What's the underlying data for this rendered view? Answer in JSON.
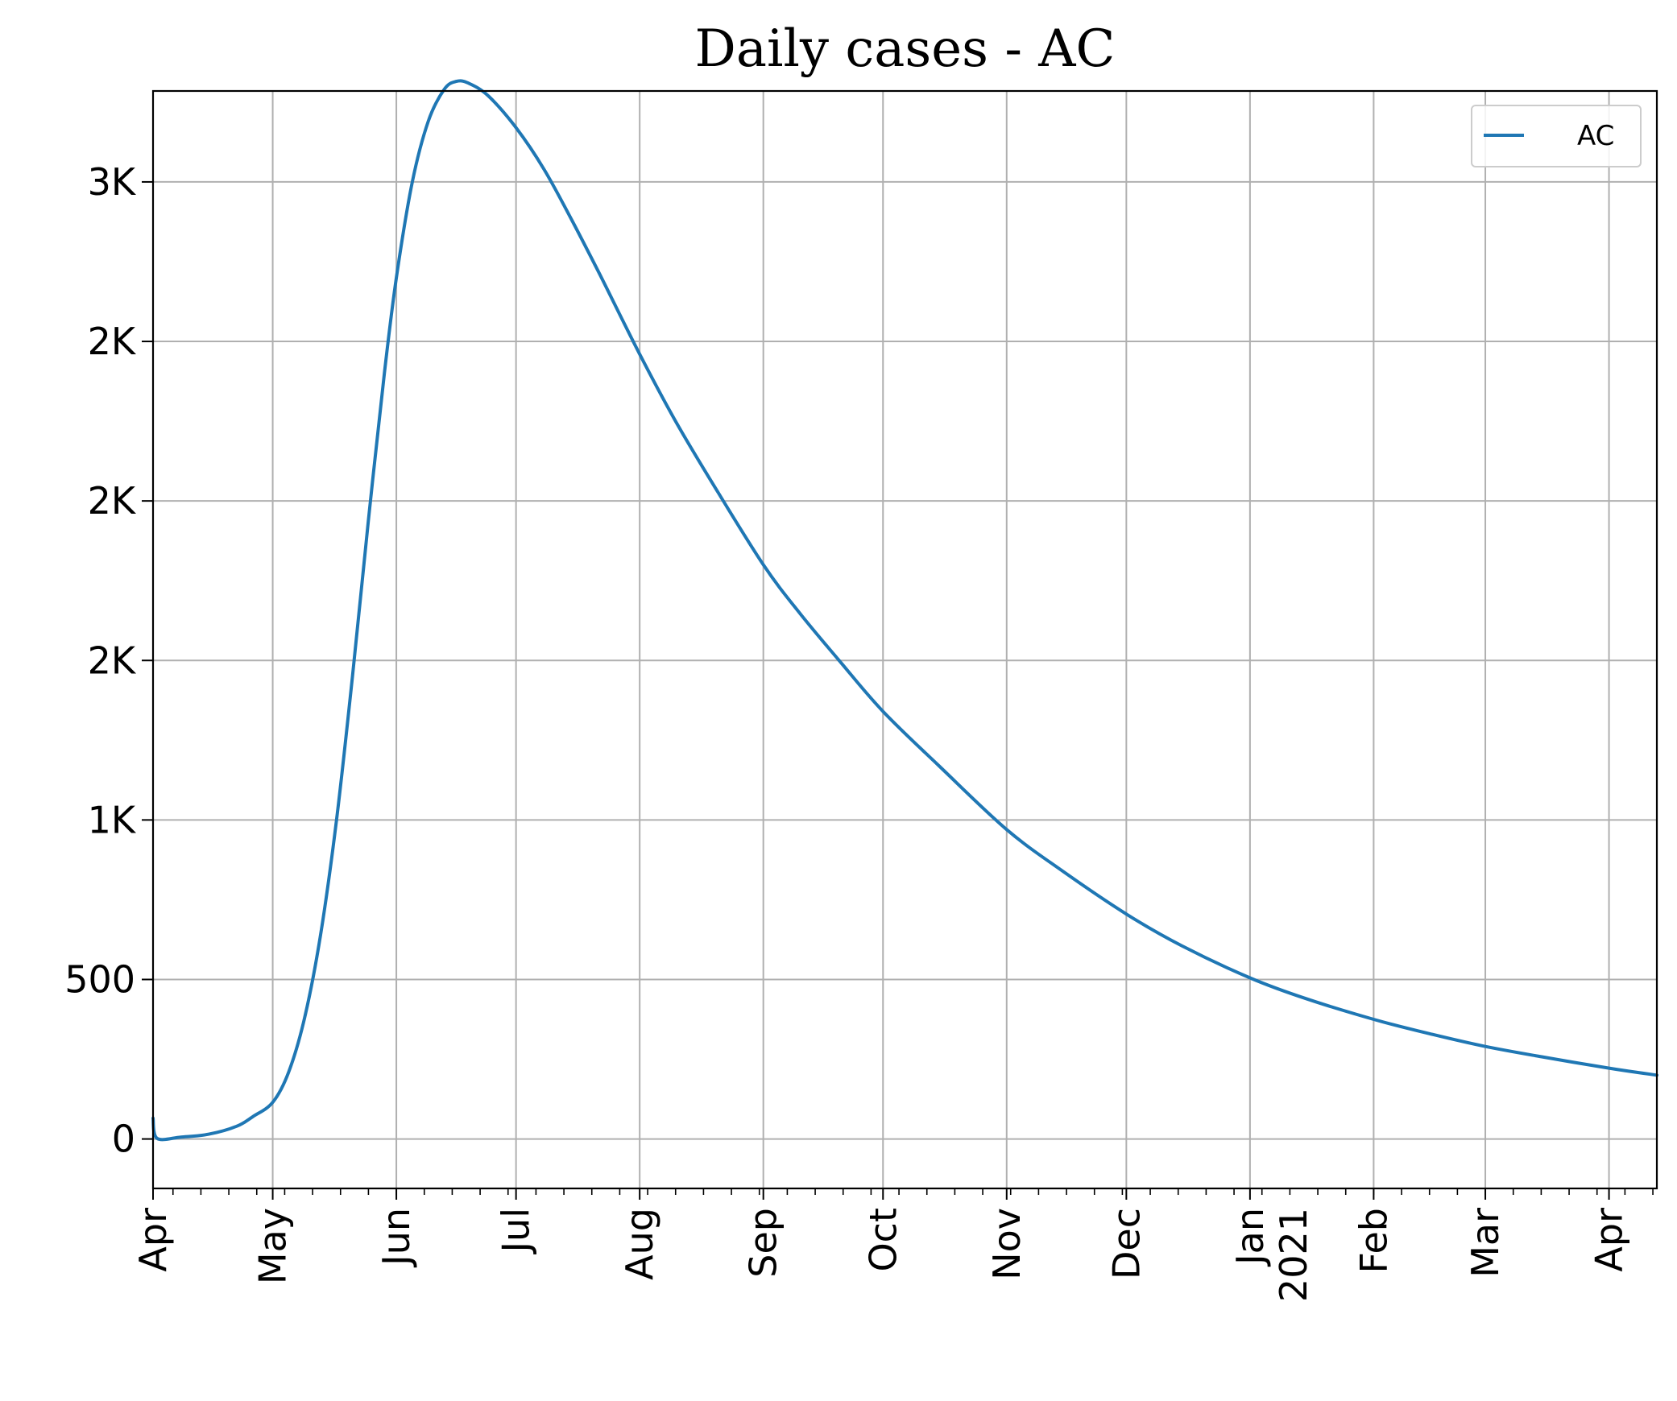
{
  "chart_data": {
    "type": "line",
    "title": "Daily cases - AC",
    "xlabel": "",
    "ylabel": "",
    "grid": true,
    "legend_position": "top-right",
    "line_color": "#1f77b4",
    "x_axis": {
      "type": "date",
      "range": [
        "2020-04-01",
        "2021-04-13"
      ],
      "tick_labels": [
        {
          "date": "2020-04-01",
          "label": "Apr"
        },
        {
          "date": "2020-05-01",
          "label": "May"
        },
        {
          "date": "2020-06-01",
          "label": "Jun"
        },
        {
          "date": "2020-07-01",
          "label": "Jul"
        },
        {
          "date": "2020-08-01",
          "label": "Aug"
        },
        {
          "date": "2020-09-01",
          "label": "Sep"
        },
        {
          "date": "2020-10-01",
          "label": "Oct"
        },
        {
          "date": "2020-11-01",
          "label": "Nov"
        },
        {
          "date": "2020-12-01",
          "label": "Dec"
        },
        {
          "date": "2021-01-01",
          "label": "Jan",
          "sublabel": "2021"
        },
        {
          "date": "2021-02-01",
          "label": "Feb"
        },
        {
          "date": "2021-03-01",
          "label": "Mar"
        },
        {
          "date": "2021-04-01",
          "label": "Apr"
        }
      ]
    },
    "y_axis": {
      "range": [
        -155,
        3285
      ],
      "ticks": [
        {
          "value": 0,
          "label": "0"
        },
        {
          "value": 500,
          "label": "500"
        },
        {
          "value": 1000,
          "label": "1K"
        },
        {
          "value": 1500,
          "label": "2K"
        },
        {
          "value": 2000,
          "label": "2K"
        },
        {
          "value": 2500,
          "label": "2K"
        },
        {
          "value": 3000,
          "label": "3K"
        }
      ]
    },
    "series": [
      {
        "name": "AC",
        "points": [
          [
            "2020-04-01",
            65
          ],
          [
            "2020-04-02",
            2
          ],
          [
            "2020-04-08",
            6
          ],
          [
            "2020-04-15",
            15
          ],
          [
            "2020-04-22",
            40
          ],
          [
            "2020-04-26",
            70
          ],
          [
            "2020-05-01",
            115
          ],
          [
            "2020-05-05",
            210
          ],
          [
            "2020-05-09",
            380
          ],
          [
            "2020-05-13",
            640
          ],
          [
            "2020-05-17",
            1000
          ],
          [
            "2020-05-21",
            1450
          ],
          [
            "2020-05-25",
            1940
          ],
          [
            "2020-05-29",
            2400
          ],
          [
            "2020-06-01",
            2700
          ],
          [
            "2020-06-05",
            3000
          ],
          [
            "2020-06-09",
            3190
          ],
          [
            "2020-06-13",
            3290
          ],
          [
            "2020-06-16",
            3315
          ],
          [
            "2020-06-19",
            3310
          ],
          [
            "2020-06-24",
            3270
          ],
          [
            "2020-07-01",
            3170
          ],
          [
            "2020-07-08",
            3040
          ],
          [
            "2020-07-15",
            2880
          ],
          [
            "2020-07-22",
            2710
          ],
          [
            "2020-08-01",
            2460
          ],
          [
            "2020-08-10",
            2250
          ],
          [
            "2020-08-20",
            2040
          ],
          [
            "2020-09-01",
            1800
          ],
          [
            "2020-09-10",
            1650
          ],
          [
            "2020-09-20",
            1500
          ],
          [
            "2020-10-01",
            1340
          ],
          [
            "2020-10-15",
            1170
          ],
          [
            "2020-11-01",
            970
          ],
          [
            "2020-11-15",
            840
          ],
          [
            "2020-12-01",
            705
          ],
          [
            "2020-12-15",
            605
          ],
          [
            "2021-01-01",
            505
          ],
          [
            "2021-01-15",
            440
          ],
          [
            "2021-02-01",
            375
          ],
          [
            "2021-02-15",
            330
          ],
          [
            "2021-03-01",
            290
          ],
          [
            "2021-03-15",
            258
          ],
          [
            "2021-04-01",
            222
          ],
          [
            "2021-04-13",
            200
          ]
        ]
      }
    ]
  }
}
